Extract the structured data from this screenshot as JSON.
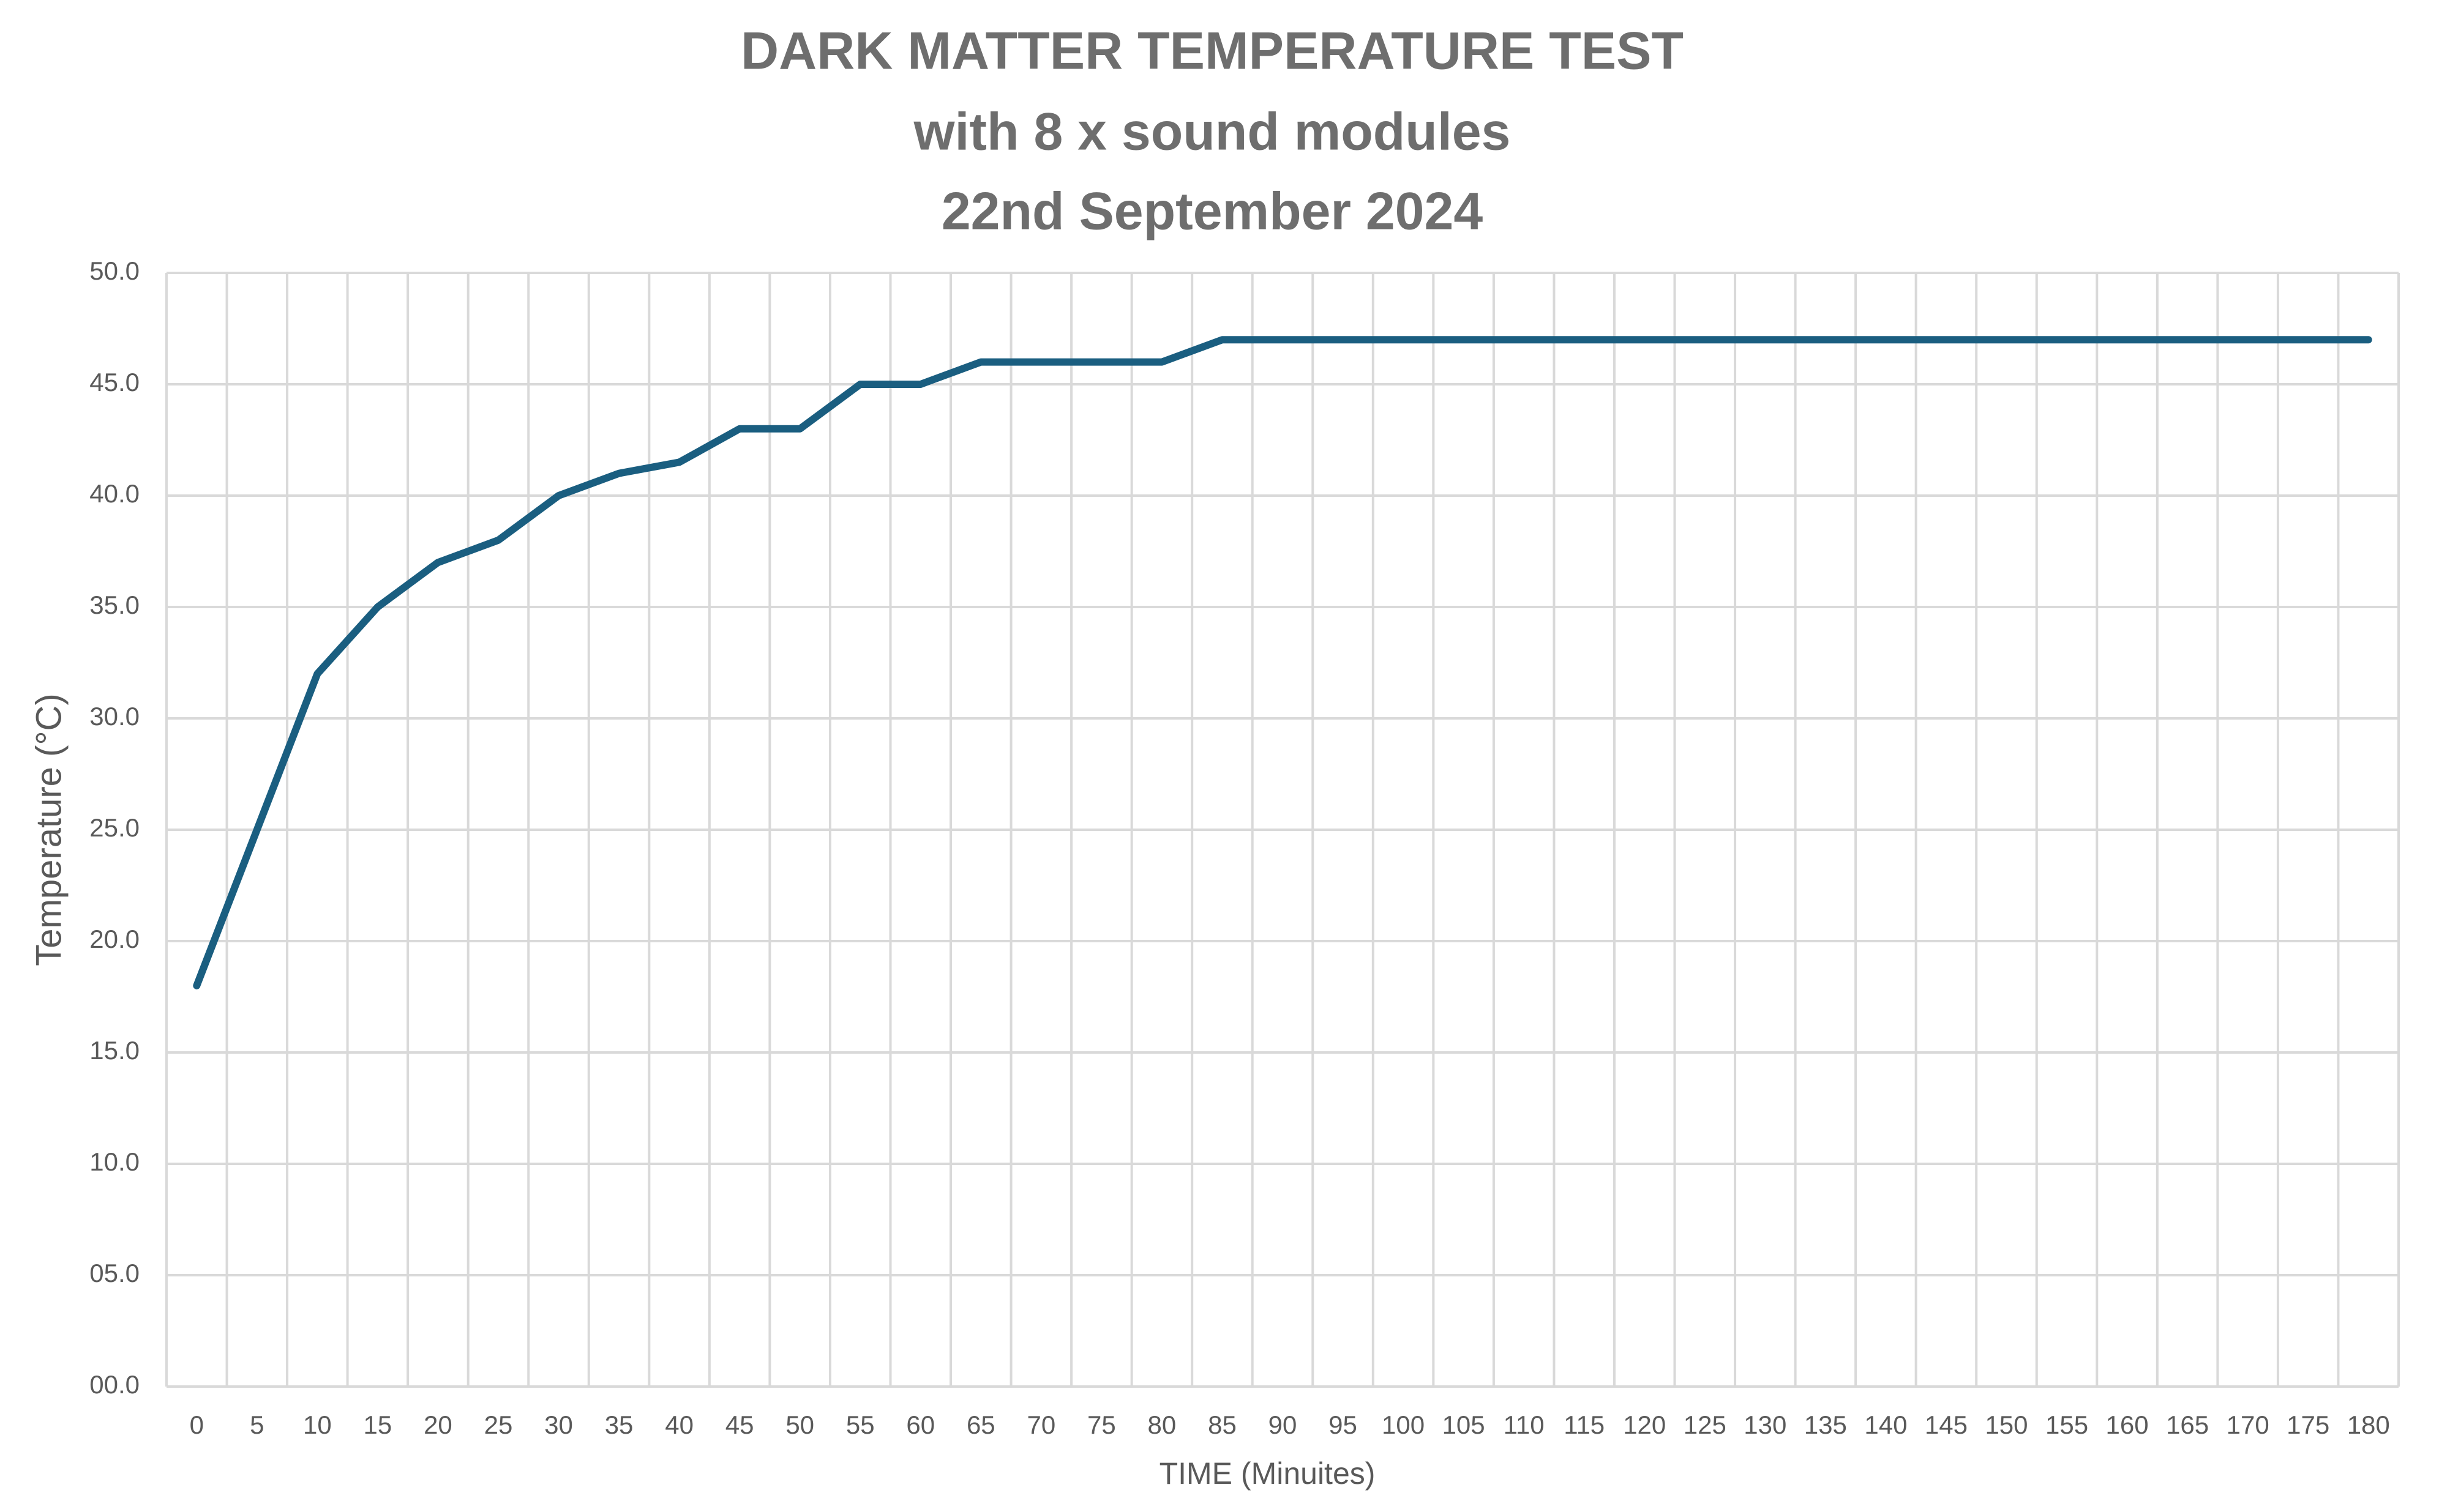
{
  "chart_data": {
    "type": "line",
    "title_lines": [
      "DARK MATTER TEMPERATURE TEST",
      "with 8 x sound modules",
      "22nd September 2024"
    ],
    "xlabel": "TIME (Minuites)",
    "ylabel": "Temperature (°C)",
    "x_ticks": [
      "0",
      "5",
      "10",
      "15",
      "20",
      "25",
      "30",
      "35",
      "40",
      "45",
      "50",
      "55",
      "60",
      "65",
      "70",
      "75",
      "80",
      "85",
      "90",
      "95",
      "100",
      "105",
      "110",
      "115",
      "120",
      "125",
      "130",
      "135",
      "140",
      "145",
      "150",
      "155",
      "160",
      "165",
      "170",
      "175",
      "180"
    ],
    "y_ticks": [
      "00.0",
      "05.0",
      "10.0",
      "15.0",
      "20.0",
      "25.0",
      "30.0",
      "35.0",
      "40.0",
      "45.0",
      "50.0"
    ],
    "ylim": [
      0,
      50
    ],
    "xlim": [
      0,
      180
    ],
    "grid": true,
    "series": [
      {
        "color": "#1a5e80",
        "x": [
          0,
          5,
          10,
          15,
          20,
          25,
          30,
          35,
          40,
          45,
          50,
          55,
          60,
          65,
          70,
          75,
          80,
          85,
          90,
          95,
          100,
          105,
          110,
          115,
          120,
          125,
          130,
          135,
          140,
          145,
          150,
          155,
          160,
          165,
          170,
          175,
          180
        ],
        "values": [
          18,
          25,
          32,
          35,
          37,
          38,
          40,
          41,
          41.5,
          43,
          43,
          45,
          45,
          46,
          46,
          46,
          46,
          47,
          47,
          47,
          47,
          47,
          47,
          47,
          47,
          47,
          47,
          47,
          47,
          47,
          47,
          47,
          47,
          47,
          47,
          47,
          47
        ]
      }
    ]
  }
}
